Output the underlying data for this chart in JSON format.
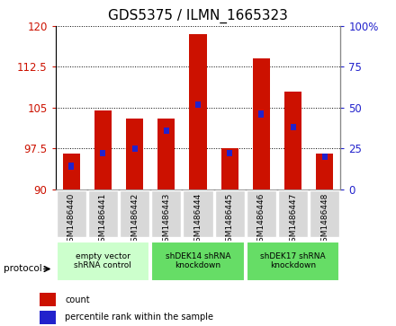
{
  "title": "GDS5375 / ILMN_1665323",
  "samples": [
    "GSM1486440",
    "GSM1486441",
    "GSM1486442",
    "GSM1486443",
    "GSM1486444",
    "GSM1486445",
    "GSM1486446",
    "GSM1486447",
    "GSM1486448"
  ],
  "count_values": [
    96.5,
    104.5,
    103.0,
    103.0,
    118.5,
    97.5,
    114.0,
    108.0,
    96.5
  ],
  "percentile_values": [
    14,
    22,
    25,
    36,
    52,
    22,
    46,
    38,
    20
  ],
  "ylim_left": [
    90,
    120
  ],
  "ylim_right": [
    0,
    100
  ],
  "yticks_left": [
    90,
    97.5,
    105,
    112.5,
    120
  ],
  "yticks_right": [
    0,
    25,
    50,
    75,
    100
  ],
  "bar_color": "#cc1100",
  "percentile_color": "#2222cc",
  "groups": [
    {
      "label": "empty vector\nshRNA control",
      "indices": [
        0,
        1,
        2
      ],
      "color": "#ccffcc"
    },
    {
      "label": "shDEK14 shRNA\nknockdown",
      "indices": [
        3,
        4,
        5
      ],
      "color": "#66dd66"
    },
    {
      "label": "shDEK17 shRNA\nknockdown",
      "indices": [
        6,
        7,
        8
      ],
      "color": "#66dd66"
    }
  ],
  "protocol_label": "protocol",
  "legend_count_label": "count",
  "legend_percentile_label": "percentile rank within the sample",
  "title_fontsize": 11,
  "tick_fontsize": 8.5,
  "bar_width": 0.55,
  "xtick_bg_color": "#d8d8d8",
  "spine_color": "#888888"
}
